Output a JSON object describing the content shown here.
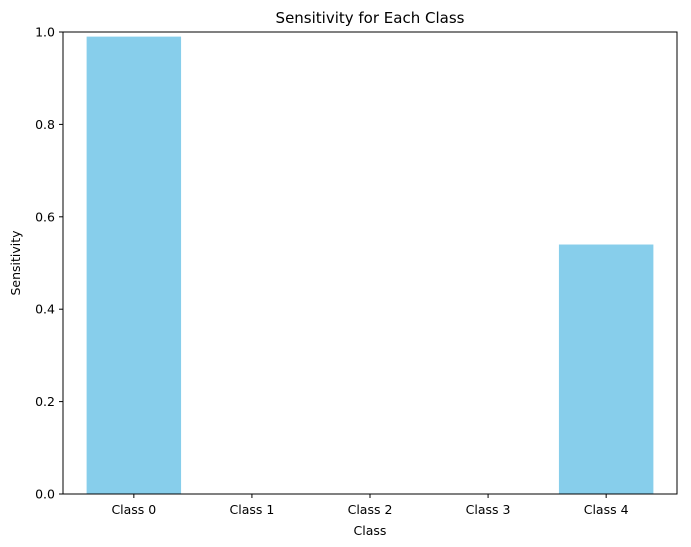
{
  "chart_data": {
    "type": "bar",
    "title": "Sensitivity for Each Class",
    "xlabel": "Class",
    "ylabel": "Sensitivity",
    "categories": [
      "Class 0",
      "Class 1",
      "Class 2",
      "Class 3",
      "Class 4"
    ],
    "values": [
      0.99,
      0,
      0,
      0,
      0.54
    ],
    "ylim": [
      0,
      1.0
    ],
    "yticks": [
      0.0,
      0.2,
      0.4,
      0.6,
      0.8,
      1.0
    ],
    "ytick_labels": [
      "0.0",
      "0.2",
      "0.4",
      "0.6",
      "0.8",
      "1.0"
    ],
    "grid": false,
    "legend": "none",
    "colors": {
      "bar": "#87ceeb",
      "axes": "#000000",
      "background": "#ffffff"
    }
  }
}
